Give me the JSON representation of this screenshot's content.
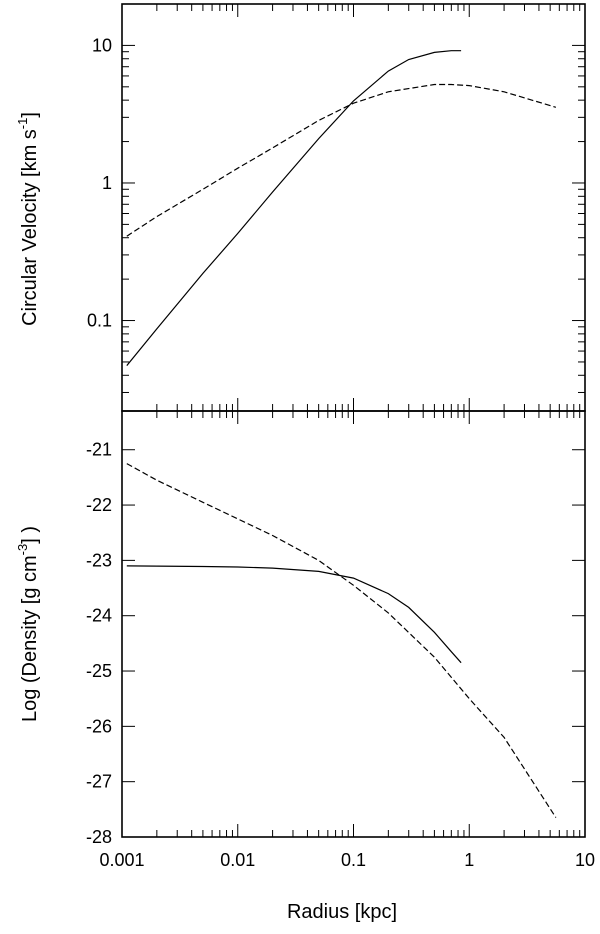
{
  "chart_data": [
    {
      "type": "line",
      "panel": "top",
      "x_scale": "log",
      "y_scale": "log",
      "xlim": [
        0.001,
        10
      ],
      "ylim": [
        0.022,
        20
      ],
      "ylabel_main": "Circular Velocity [km s",
      "ylabel_exp": "-1",
      "ylabel_end": "]",
      "x_tick_labels": [
        "0.001",
        "0.01",
        "0.1",
        "1",
        "10"
      ],
      "y_tick_labels": [
        "0.1",
        "1",
        "10"
      ],
      "y_ticks": [
        0.1,
        1,
        10
      ],
      "series": [
        {
          "style": "solid",
          "x": [
            0.0011,
            0.002,
            0.005,
            0.01,
            0.02,
            0.05,
            0.1,
            0.2,
            0.3,
            0.5,
            0.7,
            0.85
          ],
          "y": [
            0.047,
            0.087,
            0.22,
            0.43,
            0.86,
            2.1,
            3.95,
            6.5,
            7.9,
            8.9,
            9.15,
            9.15
          ]
        },
        {
          "style": "dashed",
          "x": [
            0.0011,
            0.002,
            0.005,
            0.01,
            0.02,
            0.05,
            0.1,
            0.2,
            0.5,
            0.7,
            1.0,
            2.0,
            5.6
          ],
          "y": [
            0.41,
            0.57,
            0.9,
            1.28,
            1.8,
            2.85,
            3.8,
            4.6,
            5.2,
            5.2,
            5.1,
            4.6,
            3.55
          ]
        }
      ]
    },
    {
      "type": "line",
      "panel": "bottom",
      "x_scale": "log",
      "y_scale": "linear",
      "xlim": [
        0.001,
        10
      ],
      "ylim": [
        -28,
        -20.3
      ],
      "xlabel": "Radius [kpc]",
      "ylabel_main": "Log (Density [g cm",
      "ylabel_exp": "-3",
      "ylabel_end": "] )",
      "x_tick_labels": [
        "0.001",
        "0.01",
        "0.1",
        "1",
        "10"
      ],
      "y_tick_labels": [
        "-21",
        "-22",
        "-23",
        "-24",
        "-25",
        "-26",
        "-27",
        "-28"
      ],
      "y_ticks": [
        -21,
        -22,
        -23,
        -24,
        -25,
        -26,
        -27,
        -28
      ],
      "series": [
        {
          "style": "solid",
          "x": [
            0.0011,
            0.005,
            0.01,
            0.02,
            0.05,
            0.1,
            0.2,
            0.3,
            0.5,
            0.7,
            0.85
          ],
          "y": [
            -23.1,
            -23.11,
            -23.12,
            -23.14,
            -23.2,
            -23.32,
            -23.6,
            -23.85,
            -24.3,
            -24.65,
            -24.85
          ]
        },
        {
          "style": "dashed",
          "x": [
            0.0011,
            0.002,
            0.005,
            0.01,
            0.02,
            0.05,
            0.1,
            0.2,
            0.5,
            1.0,
            2.0,
            5.6
          ],
          "y": [
            -21.25,
            -21.55,
            -21.95,
            -22.25,
            -22.55,
            -23.0,
            -23.45,
            -23.95,
            -24.75,
            -25.5,
            -26.2,
            -27.65
          ]
        }
      ]
    }
  ]
}
